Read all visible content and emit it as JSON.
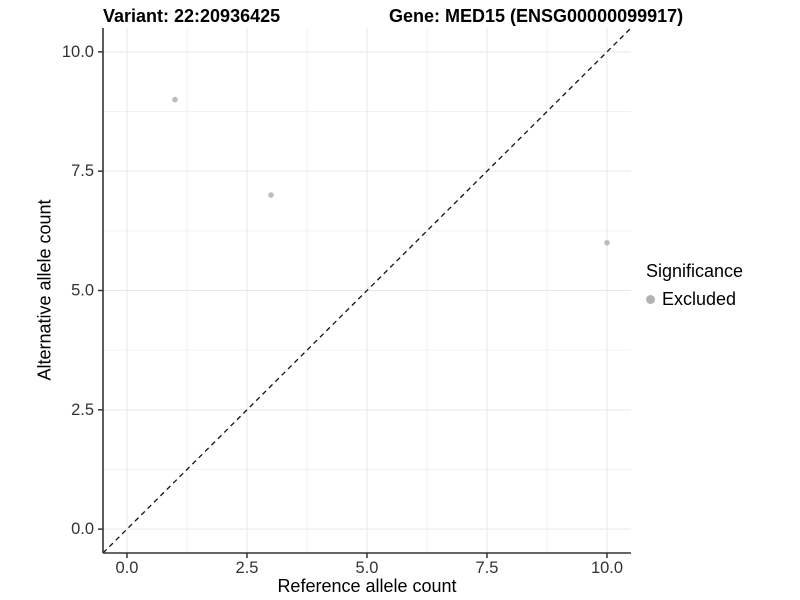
{
  "figure": {
    "title_left": "Variant: 22:20936425",
    "title_right": "Gene: MED15 (ENSG00000099917)"
  },
  "chart_data": {
    "type": "scatter",
    "title": "Variant: 22:20936425    Gene: MED15 (ENSG00000099917)",
    "xlabel": "Reference allele count",
    "ylabel": "Alternative allele count",
    "xlim": [
      -0.5,
      10.5
    ],
    "ylim": [
      -0.5,
      10.5
    ],
    "x_ticks": {
      "values": [
        0,
        2.5,
        5,
        7.5,
        10
      ],
      "labels": [
        "0.0",
        "2.5",
        "5.0",
        "7.5",
        "10.0"
      ]
    },
    "y_ticks": {
      "values": [
        0,
        2.5,
        5,
        7.5,
        10
      ],
      "labels": [
        "0.0",
        "2.5",
        "5.0",
        "7.5",
        "10.0"
      ]
    },
    "minor_ticks": [
      1.25,
      3.75,
      6.25,
      8.75
    ],
    "grid": {
      "major": true,
      "minor": true
    },
    "series": [
      {
        "name": "Excluded",
        "color": "#bdbdbd",
        "points": [
          {
            "x": 1,
            "y": 9
          },
          {
            "x": 3,
            "y": 7
          },
          {
            "x": 10,
            "y": 6
          }
        ]
      }
    ],
    "reference_line": {
      "type": "identity",
      "from": [
        -0.5,
        -0.5
      ],
      "to": [
        10.5,
        10.5
      ],
      "style": "dashed",
      "color": "#111111"
    },
    "legend": {
      "title": "Significance",
      "position": "right",
      "entries": [
        {
          "label": "Excluded",
          "color": "#b3b3b3"
        }
      ]
    },
    "colors": {
      "axis_line": "#333333",
      "tick_label": "#333333",
      "grid_major": "#e7e7e7",
      "grid_minor": "#f2f2f2"
    }
  }
}
